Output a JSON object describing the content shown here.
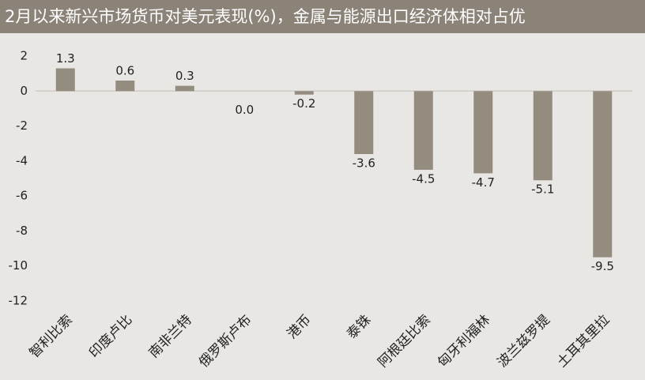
{
  "chart_data": {
    "type": "bar",
    "title": "2月以来新兴市场货币对美元表现(%)，金属与能源出口经济体相对占优",
    "categories": [
      "智利比索",
      "印度卢比",
      "南非兰特",
      "俄罗斯卢布",
      "港币",
      "泰铢",
      "阿根廷比索",
      "匈牙利福林",
      "波兰兹罗提",
      "土耳其里拉"
    ],
    "values": [
      1.3,
      0.6,
      0.3,
      0.0,
      -0.2,
      -3.6,
      -4.5,
      -4.7,
      -5.1,
      -9.5
    ],
    "value_labels": [
      "1.3",
      "0.6",
      "0.3",
      "0.0",
      "-0.2",
      "-3.6",
      "-4.5",
      "-4.7",
      "-5.1",
      "-9.5"
    ],
    "color": "#958c80",
    "ylim": [
      -12,
      2
    ],
    "yticks": [
      2,
      0,
      -2,
      -4,
      -6,
      -8,
      -10,
      -12
    ],
    "grid": false
  }
}
